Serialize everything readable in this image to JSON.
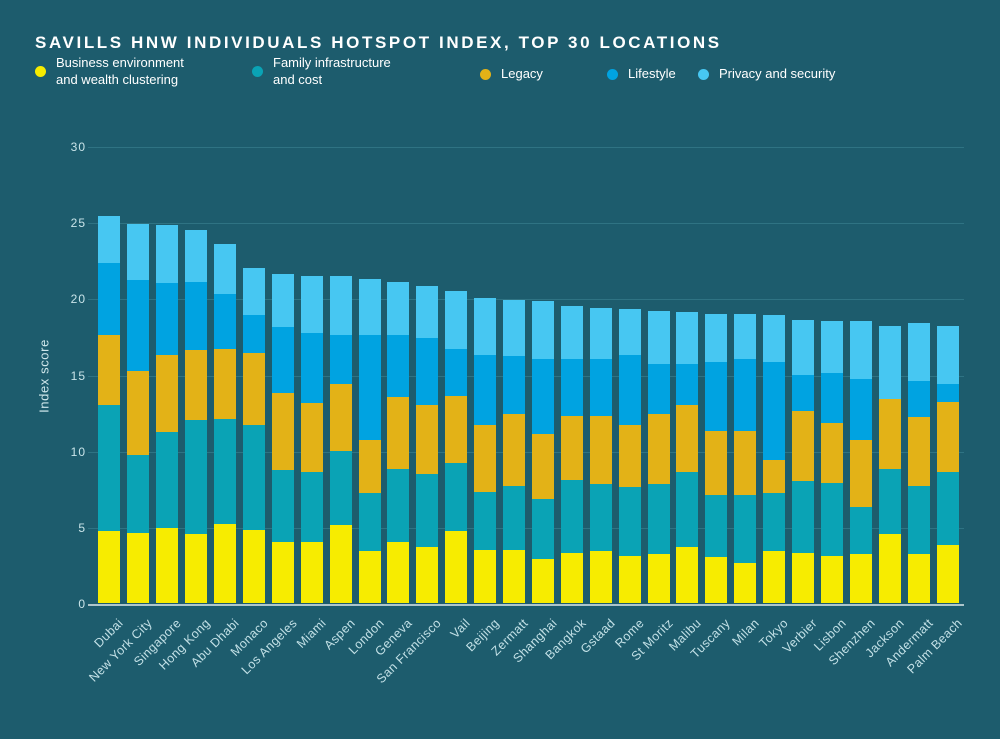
{
  "title": "SAVILLS HNW INDIVIDUALS HOTSPOT INDEX, TOP 30 LOCATIONS",
  "colors": {
    "background": "#1D5C6D",
    "grid": "#2F7383",
    "baseline": "#AEC6CB",
    "axis_text": "#C9E4E9",
    "title_text": "#FFFFFF"
  },
  "chart_data": {
    "type": "bar",
    "stacked": true,
    "title": "SAVILLS HNW INDIVIDUALS HOTSPOT INDEX, TOP 30 LOCATIONS",
    "ylabel": "Index score",
    "xlabel": "",
    "ylim": [
      0,
      30
    ],
    "y_ticks": [
      0,
      5,
      10,
      15,
      20,
      25,
      30
    ],
    "grid": true,
    "legend_position": "top",
    "categories": [
      "Dubai",
      "New York City",
      "Singapore",
      "Hong Kong",
      "Abu Dhabi",
      "Monaco",
      "Los Angeles",
      "Miami",
      "Aspen",
      "London",
      "Geneva",
      "San Francisco",
      "Vail",
      "Beijing",
      "Zermatt",
      "Shanghai",
      "Bangkok",
      "Gstaad",
      "Rome",
      "St Moritz",
      "Malibu",
      "Tuscany",
      "Milan",
      "Tokyo",
      "Verbier",
      "Lisbon",
      "Shenzhen",
      "Jackson",
      "Andermatt",
      "Palm Beach"
    ],
    "series": [
      {
        "name": "Business environment and wealth clustering",
        "legend_lines": [
          "Business environment",
          "and wealth clustering"
        ],
        "color": "#F7EC00",
        "values": [
          4.7,
          4.6,
          4.9,
          4.5,
          5.2,
          4.8,
          4.0,
          4.0,
          5.1,
          3.4,
          4.0,
          3.7,
          4.7,
          3.5,
          3.5,
          2.9,
          3.3,
          3.4,
          3.1,
          3.2,
          3.7,
          3.0,
          2.6,
          3.4,
          3.3,
          3.1,
          3.2,
          4.5,
          3.2,
          3.8
        ]
      },
      {
        "name": "Family infrastructure and cost",
        "legend_lines": [
          "Family infrastructure",
          "and cost"
        ],
        "color": "#0AA3B5",
        "values": [
          8.3,
          5.1,
          6.3,
          7.5,
          6.9,
          6.9,
          4.7,
          4.6,
          4.9,
          3.8,
          4.8,
          4.8,
          4.5,
          3.8,
          4.2,
          3.9,
          4.8,
          4.4,
          4.5,
          4.6,
          4.9,
          4.1,
          4.5,
          3.8,
          4.7,
          4.8,
          3.1,
          4.3,
          4.5,
          4.8
        ]
      },
      {
        "name": "Legacy",
        "legend_lines": [
          "Legacy"
        ],
        "color": "#E3B217",
        "values": [
          4.6,
          5.5,
          5.1,
          4.6,
          4.6,
          4.7,
          5.1,
          4.5,
          4.4,
          3.5,
          4.7,
          4.5,
          4.4,
          4.4,
          4.7,
          4.3,
          4.2,
          4.5,
          4.1,
          4.6,
          4.4,
          4.2,
          4.2,
          2.2,
          4.6,
          3.9,
          4.4,
          4.6,
          4.5,
          4.6
        ]
      },
      {
        "name": "Lifestyle",
        "legend_lines": [
          "Lifestyle"
        ],
        "color": "#00A3E1",
        "values": [
          4.7,
          6.0,
          4.7,
          4.5,
          3.6,
          2.5,
          4.3,
          4.6,
          3.2,
          6.9,
          4.1,
          4.4,
          3.1,
          4.6,
          3.8,
          4.9,
          3.7,
          3.7,
          4.6,
          3.3,
          2.7,
          4.5,
          4.7,
          6.4,
          2.4,
          3.3,
          4.0,
          0,
          2.4,
          1.2
        ]
      },
      {
        "name": "Privacy and security",
        "legend_lines": [
          "Privacy and security"
        ],
        "color": "#47C7F2",
        "values": [
          3.1,
          3.7,
          3.8,
          3.4,
          3.3,
          3.1,
          3.5,
          3.8,
          3.9,
          3.7,
          3.5,
          3.4,
          3.8,
          3.7,
          3.7,
          3.8,
          3.5,
          3.4,
          3.0,
          3.5,
          3.4,
          3.2,
          3.0,
          3.1,
          3.6,
          3.4,
          3.8,
          4.8,
          3.8,
          3.8
        ]
      }
    ],
    "totals": [
      25.4,
      24.9,
      24.8,
      24.5,
      23.6,
      22.0,
      21.6,
      21.5,
      21.5,
      21.3,
      21.1,
      20.8,
      20.5,
      20.0,
      19.9,
      19.8,
      19.5,
      19.4,
      19.3,
      19.2,
      19.1,
      19.0,
      19.0,
      18.9,
      18.6,
      18.5,
      18.5,
      18.2,
      18.4,
      18.2
    ]
  }
}
